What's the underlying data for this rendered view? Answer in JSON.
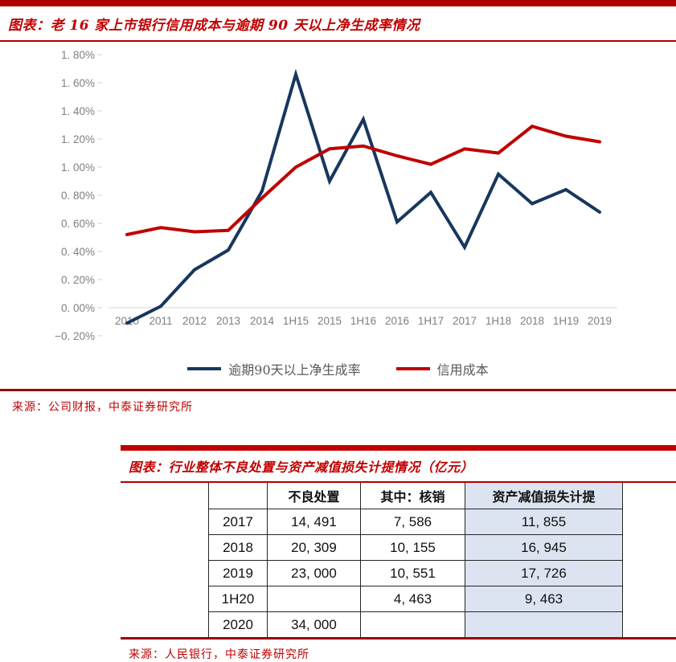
{
  "colors": {
    "accent_red": "#c00000",
    "rule_red": "#b00000",
    "source_rule_red": "#990000",
    "navy_series": "#17375d",
    "red_series": "#c00000",
    "table_shade": "#dce4f1",
    "tick_gray": "#7f7f7f",
    "axis_line_gray": "#d4d4d4"
  },
  "chart_data": [
    {
      "type": "line",
      "title": "图表：老 16 家上市银行信用成本与逾期 90 天以上净生成率情况",
      "source": "来源：公司财报，中泰证券研究所",
      "xlabel": "",
      "ylabel": "",
      "unit": "%",
      "grid": false,
      "legend_position": "bottom",
      "ylim": [
        -0.2,
        1.8
      ],
      "y_ticks": [
        "1. 80%",
        "1. 60%",
        "1. 40%",
        "1. 20%",
        "1. 00%",
        "0. 80%",
        "0. 60%",
        "0. 40%",
        "0. 20%",
        "0. 00%",
        "−0. 20%"
      ],
      "categories": [
        "2010",
        "2011",
        "2012",
        "2013",
        "2014",
        "1H15",
        "2015",
        "1H16",
        "2016",
        "1H17",
        "2017",
        "1H18",
        "2018",
        "1H19",
        "2019"
      ],
      "series": [
        {
          "name": "逾期90天以上净生成率",
          "color": "#17375d",
          "values": [
            -0.11,
            0.01,
            0.27,
            0.41,
            0.83,
            1.66,
            0.9,
            1.34,
            0.61,
            0.82,
            0.43,
            0.95,
            0.74,
            0.84,
            0.68
          ]
        },
        {
          "name": "信用成本",
          "color": "#c00000",
          "values": [
            0.52,
            0.57,
            0.54,
            0.55,
            0.78,
            1.0,
            1.13,
            1.15,
            1.08,
            1.02,
            1.13,
            1.1,
            1.29,
            1.22,
            1.18
          ]
        }
      ]
    },
    {
      "type": "table",
      "title": "图表：行业整体不良处置与资产减值损失计提情况（亿元）",
      "source": "来源：人民银行，中泰证券研究所",
      "headers": [
        "",
        "不良处置",
        "其中：核销",
        "资产减值损失计提"
      ],
      "rows": [
        [
          "2017",
          "14, 491",
          "7, 586",
          "11, 855"
        ],
        [
          "2018",
          "20, 309",
          "10, 155",
          "16, 945"
        ],
        [
          "2019",
          "23, 000",
          "10, 551",
          "17, 726"
        ],
        [
          "1H20",
          "",
          "4, 463",
          "9, 463"
        ],
        [
          "2020",
          "34, 000",
          "",
          ""
        ]
      ]
    }
  ]
}
